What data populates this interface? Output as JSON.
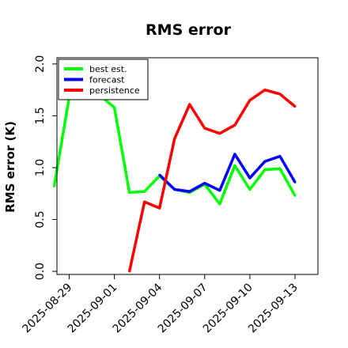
{
  "chart_data": {
    "type": "line",
    "title": "RMS error",
    "xlabel": "",
    "ylabel": "RMS error (K)",
    "x": [
      "2025-08-28",
      "2025-08-29",
      "2025-08-30",
      "2025-08-31",
      "2025-09-01",
      "2025-09-02",
      "2025-09-03",
      "2025-09-04",
      "2025-09-05",
      "2025-09-06",
      "2025-09-07",
      "2025-09-08",
      "2025-09-09",
      "2025-09-10",
      "2025-09-11",
      "2025-09-12",
      "2025-09-13"
    ],
    "xticks": [
      "2025-08-29",
      "2025-09-01",
      "2025-09-04",
      "2025-09-07",
      "2025-09-10",
      "2025-09-13"
    ],
    "highlight_tick": "2025-09-04",
    "highlight_color": "#228B22",
    "ylim": [
      -0.03,
      2.06
    ],
    "yticks": [
      0.0,
      0.5,
      1.0,
      1.5,
      2.0
    ],
    "grid": false,
    "legend_position": "top-left",
    "series": [
      {
        "name": "best est.",
        "color": "#00ff00",
        "values": [
          0.82,
          1.68,
          1.7,
          1.7,
          1.58,
          0.76,
          0.77,
          0.92,
          0.79,
          0.76,
          0.84,
          0.65,
          1.02,
          0.79,
          0.98,
          0.99,
          0.73
        ]
      },
      {
        "name": "forecast",
        "color": "#0000ff",
        "values": [
          null,
          null,
          null,
          null,
          null,
          null,
          null,
          0.93,
          0.79,
          0.77,
          0.85,
          0.78,
          1.13,
          0.9,
          1.06,
          1.11,
          0.86
        ]
      },
      {
        "name": "persistence",
        "color": "#ff0000",
        "values": [
          null,
          null,
          null,
          null,
          null,
          0.0,
          0.67,
          0.61,
          1.28,
          1.61,
          1.38,
          1.33,
          1.41,
          1.65,
          1.75,
          1.71,
          1.59
        ]
      }
    ]
  }
}
